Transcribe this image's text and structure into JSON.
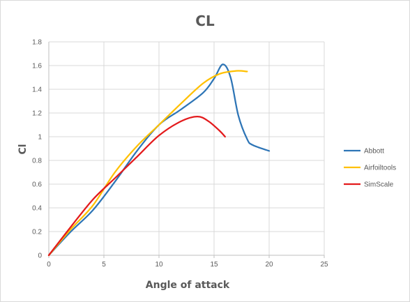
{
  "chart_data": {
    "type": "line",
    "title": "CL",
    "xlabel": "Angle of attack",
    "ylabel": "Cl",
    "xlim": [
      0,
      25
    ],
    "ylim": [
      0,
      1.8
    ],
    "xticks": [
      0,
      5,
      10,
      15,
      20,
      25
    ],
    "yticks": [
      0,
      0.2,
      0.4,
      0.6,
      0.8,
      1,
      1.2,
      1.4,
      1.6,
      1.8
    ],
    "xtick_labels": [
      "0",
      "5",
      "10",
      "15",
      "20",
      "25"
    ],
    "ytick_labels": [
      "0",
      "0.2",
      "0.4",
      "0.6",
      "0.8",
      "1",
      "1.2",
      "1.4",
      "1.6",
      "1.8"
    ],
    "grid": true,
    "legend_position": "right",
    "series": [
      {
        "name": "Abbott",
        "color": "#2e75b6",
        "x": [
          0,
          2,
          4,
          6,
          8,
          10,
          12,
          14,
          15,
          15.8,
          16.5,
          17.2,
          18,
          18.5,
          20
        ],
        "y": [
          0,
          0.2,
          0.38,
          0.62,
          0.88,
          1.1,
          1.23,
          1.37,
          1.49,
          1.61,
          1.5,
          1.18,
          0.98,
          0.93,
          0.88
        ]
      },
      {
        "name": "Airfoiltools",
        "color": "#ffc000",
        "x": [
          0,
          2,
          4,
          6,
          8,
          10,
          12,
          14,
          15.5,
          17,
          18
        ],
        "y": [
          0,
          0.22,
          0.42,
          0.7,
          0.92,
          1.1,
          1.28,
          1.45,
          1.53,
          1.555,
          1.55
        ]
      },
      {
        "name": "SimScale",
        "color": "#e31a1c",
        "x": [
          0,
          2,
          4,
          6,
          8,
          10,
          12,
          13.5,
          14.5,
          15.5,
          16
        ],
        "y": [
          0,
          0.24,
          0.47,
          0.65,
          0.83,
          1.01,
          1.13,
          1.17,
          1.13,
          1.05,
          1.0
        ]
      }
    ]
  }
}
